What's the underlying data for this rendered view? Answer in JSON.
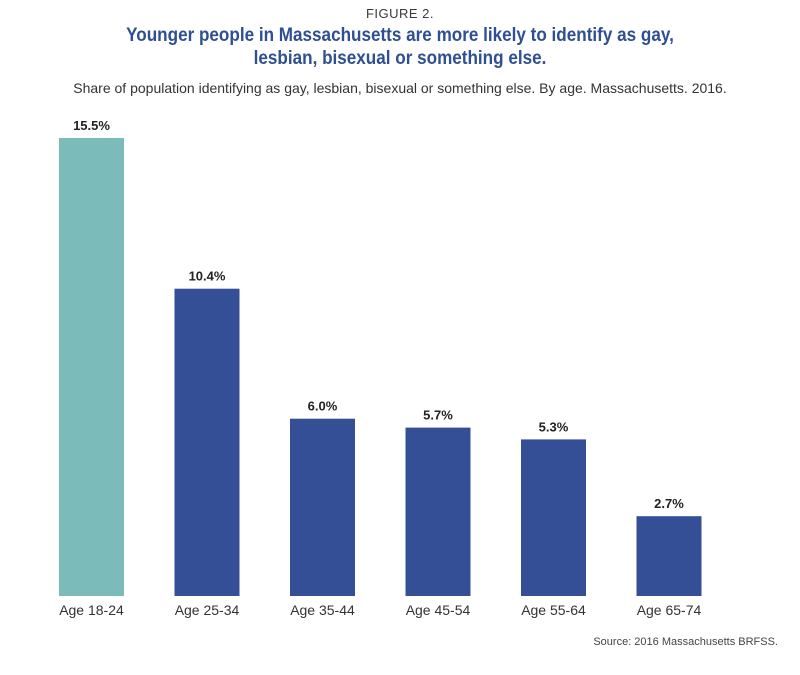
{
  "figure_label": "FIGURE 2.",
  "source": "Source: 2016 Massachusetts BRFSS.",
  "colors": {
    "highlight": "#7bbcbb",
    "bar": "#344f95",
    "title": "#2f4f93"
  },
  "chart_data": {
    "type": "bar",
    "title": "Younger people in Massachusetts are more likely to identify as gay, lesbian, bisexual or something else.",
    "subtitle": "Share of population identifying as gay, lesbian, bisexual or something else. By age. Massachusetts. 2016.",
    "categories": [
      "Age 18-24",
      "Age 25-34",
      "Age 35-44",
      "Age 45-54",
      "Age 55-64",
      "Age 65-74"
    ],
    "values": [
      15.5,
      10.4,
      6.0,
      5.7,
      5.3,
      2.7
    ],
    "value_labels": [
      "15.5%",
      "10.4%",
      "6.0%",
      "5.7%",
      "5.3%",
      "2.7%"
    ],
    "highlight_index": 0,
    "xlabel": "",
    "ylabel": "",
    "ylim": [
      0,
      15.5
    ],
    "grid": false
  }
}
